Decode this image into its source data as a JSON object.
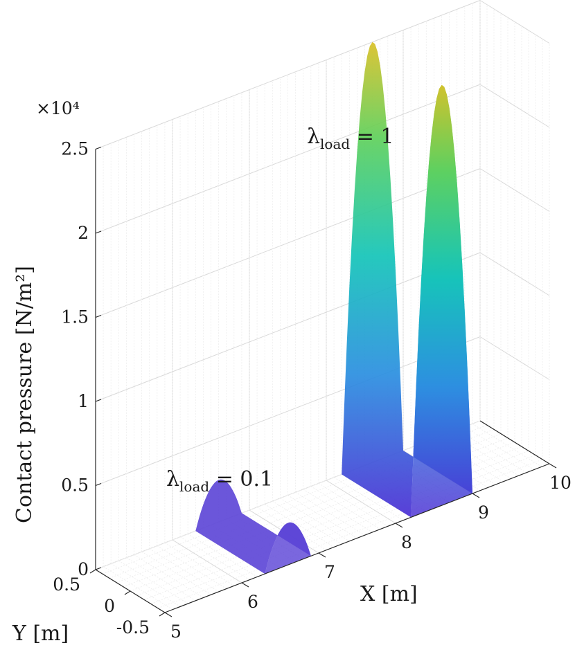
{
  "chart_data": {
    "type": "surface3d",
    "title": "",
    "zlabel": "Contact pressure [N/m²]",
    "xlabel": "X [m]",
    "ylabel": "Y [m]",
    "zlim": [
      0,
      25000
    ],
    "xlim": [
      5,
      10
    ],
    "ylim": [
      -0.5,
      0.5
    ],
    "exponent_label": "×10⁴",
    "z_ticks": [
      "0",
      "0.5",
      "1",
      "1.5",
      "2",
      "2.5"
    ],
    "x_ticks": [
      "5",
      "6",
      "7",
      "8",
      "9",
      "10"
    ],
    "y_ticks": [
      "0.5",
      "0",
      "-0.5"
    ],
    "series": [
      {
        "name": "load_0.1",
        "annotation": {
          "base": "λ",
          "sub": "load",
          "rest": " = 0.1"
        },
        "x_range": [
          6.3,
          6.9
        ],
        "peak_x": 6.5,
        "peak_pressure": 2500
      },
      {
        "name": "load_1",
        "annotation": {
          "base": "λ",
          "sub": "load",
          "rest": " = 1"
        },
        "x_range": [
          8.2,
          9.0
        ],
        "peak_x": 8.6,
        "peak_pressure": 25000
      }
    ],
    "colormap": [
      "#4b2ed4",
      "#2a8ee0",
      "#13c4b8",
      "#5fd05a",
      "#d9c026"
    ]
  }
}
